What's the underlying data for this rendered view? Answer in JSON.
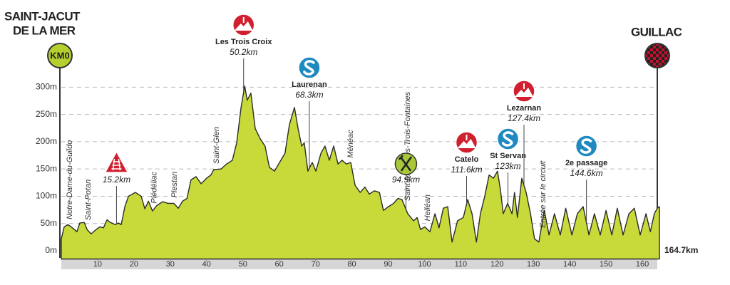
{
  "chart_data": {
    "type": "area",
    "title_lines": [
      "SAINT-JACUT",
      "DE LA MER"
    ],
    "start_marker": "KM0",
    "finish_name": "GUILLAC",
    "end_label": "164.7km",
    "xlim": [
      0,
      164.7
    ],
    "xticks": [
      10,
      20,
      30,
      40,
      50,
      60,
      70,
      80,
      90,
      100,
      110,
      120,
      130,
      140,
      150,
      160
    ],
    "ylim": [
      -15,
      320
    ],
    "yticks": [
      {
        "value": 0,
        "label": "0m"
      },
      {
        "value": 50,
        "label": "50m"
      },
      {
        "value": 100,
        "label": "100m"
      },
      {
        "value": 150,
        "label": "150m"
      },
      {
        "value": 200,
        "label": "200m"
      },
      {
        "value": 250,
        "label": "250m"
      },
      {
        "value": 300,
        "label": "300m"
      }
    ],
    "grid": true,
    "series": [
      {
        "color": "#c8da3a",
        "x": [
          0,
          0.8,
          1.8,
          2.7,
          4.3,
          5.1,
          6.3,
          7.1,
          8.2,
          9.6,
          10.6,
          11.6,
          12.6,
          13.5,
          14.9,
          15.7,
          16.5,
          17.5,
          18.5,
          20.4,
          22,
          23,
          24,
          25.1,
          26.3,
          27.9,
          29.4,
          31,
          32.2,
          33.4,
          34.6,
          35.7,
          37.1,
          38.5,
          40,
          41.2,
          42,
          44,
          45.5,
          47.1,
          48.3,
          49.5,
          50.5,
          51.2,
          52.2,
          53.4,
          54.8,
          56.1,
          57.3,
          58.7,
          60.1,
          61.6,
          62.8,
          64.2,
          65.2,
          66.2,
          66.9,
          67.9,
          69.1,
          70.1,
          71.5,
          72.6,
          73.8,
          75,
          76.2,
          77.3,
          78.5,
          79.7,
          80.9,
          82.3,
          83.6,
          84.8,
          86.2,
          87.6,
          88.7,
          90.1,
          91.5,
          92.7,
          93.8,
          95.4,
          97,
          98,
          98.9,
          100.1,
          101.5,
          102.9,
          104,
          105.2,
          106.4,
          107.6,
          109.1,
          110.7,
          111.9,
          113.1,
          114.3,
          115.4,
          116.6,
          117.8,
          119,
          120.1,
          120.9,
          121.7,
          122.9,
          124.1,
          124.8,
          125.6,
          126.8,
          128,
          129.2,
          130.3,
          131.5,
          133,
          134.3,
          135.8,
          137.4,
          138.9,
          140.6,
          142.1,
          143.7,
          145.3,
          146.8,
          148.4,
          150,
          151.6,
          153.1,
          154.7,
          156.3,
          157.8,
          159.4,
          161,
          162.2,
          163.3,
          164.1,
          164.7
        ],
        "values": [
          22,
          44,
          48,
          44,
          35,
          51,
          52,
          39,
          31,
          39,
          44,
          42,
          57,
          52,
          48,
          51,
          48,
          81,
          100,
          107,
          100,
          77,
          91,
          73,
          83,
          90,
          87,
          87,
          78,
          91,
          96,
          130,
          136,
          123,
          133,
          139,
          149,
          150,
          159,
          166,
          198,
          263,
          302,
          276,
          289,
          224,
          205,
          192,
          153,
          146,
          162,
          179,
          231,
          263,
          224,
          192,
          198,
          146,
          162,
          146,
          179,
          192,
          166,
          192,
          159,
          166,
          159,
          162,
          120,
          107,
          117,
          104,
          110,
          107,
          74,
          81,
          87,
          96,
          94,
          68,
          55,
          61,
          39,
          44,
          35,
          68,
          42,
          78,
          81,
          16,
          55,
          61,
          94,
          68,
          16,
          68,
          100,
          139,
          133,
          146,
          113,
          68,
          87,
          68,
          107,
          61,
          133,
          107,
          68,
          22,
          16,
          74,
          29,
          68,
          29,
          78,
          29,
          68,
          81,
          29,
          68,
          29,
          74,
          29,
          78,
          29,
          68,
          78,
          29,
          68,
          35,
          68,
          78,
          81
        ]
      }
    ],
    "towns": [
      {
        "name": "Notre-Dame-du-Guildo",
        "x": 1.6
      },
      {
        "name": "Saint-Potan",
        "x": 6.7
      },
      {
        "name": "Plédéliac",
        "x": 24.9
      },
      {
        "name": "Plestan",
        "x": 30.4
      },
      {
        "name": "Saint-Glen",
        "x": 42
      },
      {
        "name": "Ménéac",
        "x": 78.9
      },
      {
        "name": "Saint-Malo-des-Trois-Fontaines",
        "x": 94.6
      },
      {
        "name": "Helléan",
        "x": 100.1
      },
      {
        "name": "Entrée sur le circuit",
        "x": 131.9
      }
    ],
    "points": [
      {
        "icon": "crossing",
        "x": 15.2,
        "x_label": "15.2km"
      },
      {
        "icon": "climb",
        "name": "Les Trois Croix",
        "x": 50.2,
        "x_label": "50.2km"
      },
      {
        "icon": "sprint",
        "name": "Laurenan",
        "x": 68.3,
        "x_label": "68.3km"
      },
      {
        "icon": "feed",
        "x": 94.9,
        "x_label": "94.9km"
      },
      {
        "icon": "climb",
        "name": "Catelo",
        "x": 111.6,
        "x_label": "111.6km"
      },
      {
        "icon": "sprint",
        "name": "St Servan",
        "x": 123,
        "x_label": "123km"
      },
      {
        "icon": "climb",
        "name": "Lezarnan",
        "x": 127.4,
        "x_label": "127.4km"
      },
      {
        "icon": "sprint",
        "name": "2e passage",
        "x": 144.6,
        "x_label": "144.6km"
      }
    ]
  }
}
